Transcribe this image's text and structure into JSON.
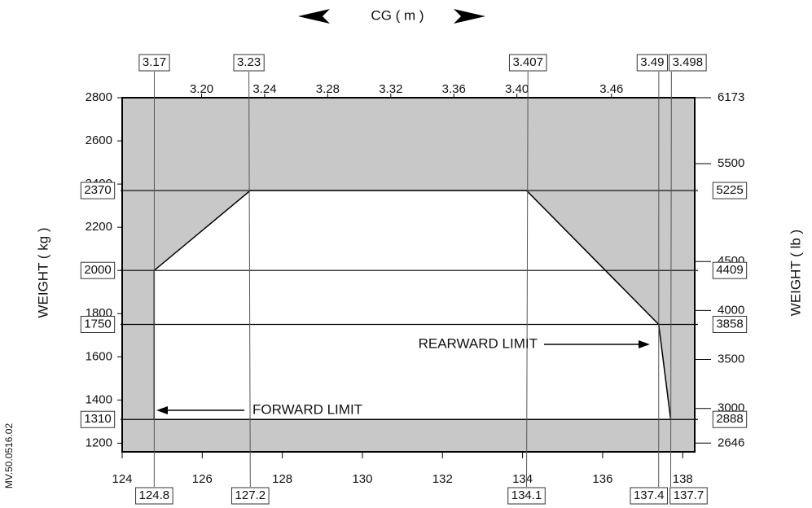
{
  "chart_data": {
    "type": "envelope",
    "title": "CG ( m )",
    "y_label": "WEIGHT ( kg )",
    "y2_label": "WEIGHT ( lb )",
    "side_note": "MV.50.0516.02",
    "annotations": [
      "FORWARD LIMIT",
      "REARWARD LIMIT"
    ],
    "x": [
      124.8,
      124.8,
      127.2,
      134.1,
      137.4,
      137.7
    ],
    "values": [
      1310,
      2000,
      2370,
      2370,
      1750,
      1310
    ],
    "outside_color": "#c8c8c8",
    "inside_color": "#ffffff",
    "line_color": "#000000",
    "xlim": [
      124,
      138.3
    ],
    "xticks": [
      124,
      126,
      128,
      130,
      132,
      134,
      136,
      138
    ],
    "x2lim": [
      3.1496,
      3.5128
    ],
    "x2ticks": [
      {
        "value": 3.2,
        "label": "3.20"
      },
      3.24,
      3.28,
      3.32,
      3.36,
      {
        "value": 3.4,
        "label": "3.40"
      },
      3.46
    ],
    "x2_refs": [
      3.17,
      3.23,
      3.407,
      3.49,
      3.498
    ],
    "ylim": [
      1160,
      2800
    ],
    "yticks": [
      1200,
      1400,
      1600,
      1800,
      2000,
      2200,
      2400,
      2600,
      2800
    ],
    "y2lim": [
      2557,
      6173
    ],
    "y2ticks": [
      2646,
      3000,
      3500,
      4000,
      4500,
      5500,
      6173
    ],
    "y2_refs": [
      5225,
      4409,
      3858,
      2888
    ]
  }
}
